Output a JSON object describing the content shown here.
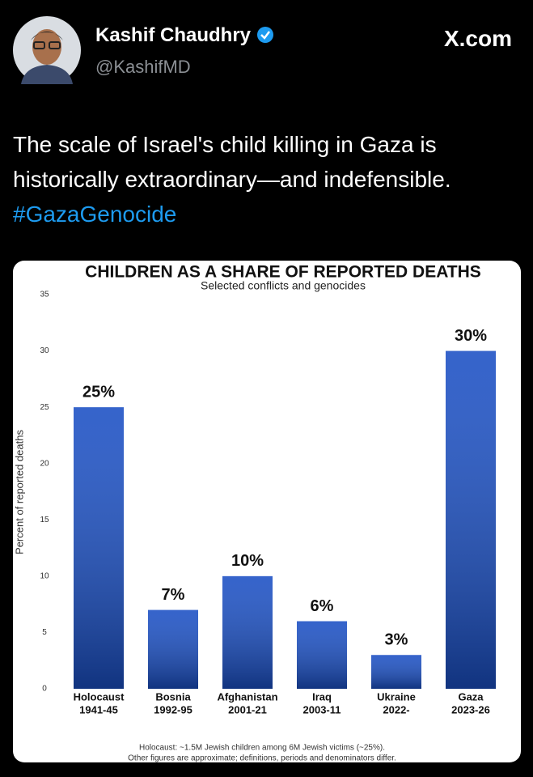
{
  "tweet": {
    "name": "Kashif Chaudhry",
    "handle": "@KashifMD",
    "site": "X.com",
    "text": "The scale of Israel's child killing in Gaza is historically extraordinary—and indefensible.",
    "hashtag": "#GazaGenocide"
  },
  "chart_data": {
    "type": "bar",
    "title": "CHILDREN AS A SHARE OF REPORTED DEATHS",
    "subtitle": "Selected conflicts and genocides",
    "y_label": "Percent of reported deaths",
    "categories": [
      "Holocaust",
      "Bosnia",
      "Afghanistan",
      "Iraq",
      "Ukraine",
      "Gaza"
    ],
    "periods": [
      "1941-45",
      "1992-95",
      "2001-21",
      "2003-11",
      "2022-",
      "2023-26"
    ],
    "values": [
      25,
      7,
      10,
      6,
      3,
      30
    ],
    "value_labels": [
      "25%",
      "7%",
      "10%",
      "6%",
      "3%",
      "30%"
    ],
    "color": "#1a4fc4",
    "ylim": [
      0,
      35
    ],
    "yticks": [
      0,
      5,
      10,
      15,
      20,
      25,
      30,
      35
    ],
    "grid": false,
    "notes": [
      "Holocaust: ~1.5M Jewish children among 6M Jewish victims (~25%).",
      "Other figures are approximate; definitions, periods and denominators differ."
    ]
  }
}
